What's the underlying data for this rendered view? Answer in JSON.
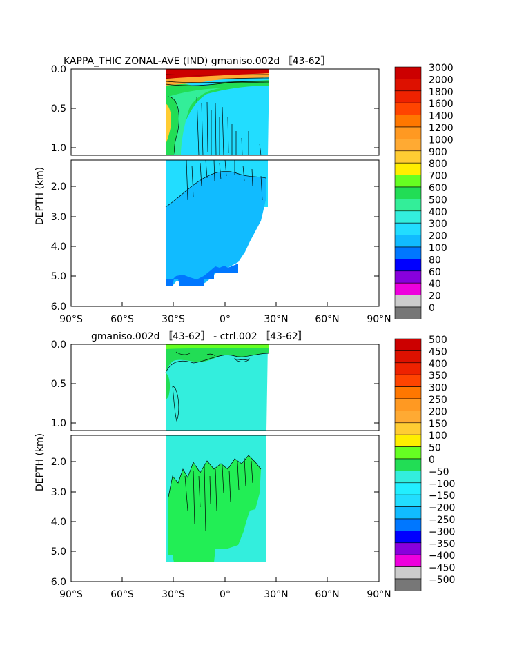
{
  "chart_data": [
    {
      "type": "heatmap",
      "title": "KAPPA_THIC ZONAL-AVE (IND) gmaniso.002d 〚43-62〛",
      "ylabel": "DEPTH (km)",
      "x_ticks": [
        "90°S",
        "60°S",
        "30°S",
        "0°",
        "30°N",
        "60°N",
        "90°N"
      ],
      "y_ticks_upper": [
        "0.0",
        "0.5",
        "1.0"
      ],
      "y_ticks_lower": [
        "2.0",
        "3.0",
        "4.0",
        "5.0",
        "6.0"
      ],
      "xlim": [
        -90,
        90
      ],
      "ylim": [
        0,
        6.0
      ],
      "upper_panel_ylim": [
        0,
        1.1
      ],
      "lower_panel_ylim": [
        1.1,
        6.0
      ],
      "legend": "right",
      "colorbar_levels": [
        "3000",
        "2000",
        "1800",
        "1600",
        "1400",
        "1200",
        "1000",
        "900",
        "800",
        "700",
        "600",
        "500",
        "400",
        "300",
        "200",
        "100",
        "80",
        "60",
        "40",
        "20",
        "0"
      ],
      "colorbar_colors": [
        "#cc0000",
        "#dd1100",
        "#ee2200",
        "#ff4400",
        "#ff7700",
        "#ff9922",
        "#ffaa33",
        "#ffcc33",
        "#ffee00",
        "#66ff22",
        "#22dd55",
        "#33ee99",
        "#33eedd",
        "#22ddff",
        "#11bbff",
        "#0077ff",
        "#0000ff",
        "#8800dd",
        "#ee00dd",
        "#cccccc",
        "#777777"
      ],
      "data_extent": {
        "lat": [
          -35,
          26
        ],
        "max_depth_km": 5.35
      }
    },
    {
      "type": "heatmap",
      "title": "gmaniso.002d 〚43-62〛 - ctrl.002 〚43-62〛",
      "ylabel": "DEPTH (km)",
      "x_ticks": [
        "90°S",
        "60°S",
        "30°S",
        "0°",
        "30°N",
        "60°N",
        "90°N"
      ],
      "y_ticks_upper": [
        "0.0",
        "0.5",
        "1.0"
      ],
      "y_ticks_lower": [
        "2.0",
        "3.0",
        "4.0",
        "5.0",
        "6.0"
      ],
      "xlim": [
        -90,
        90
      ],
      "ylim": [
        0,
        6.0
      ],
      "upper_panel_ylim": [
        0,
        1.1
      ],
      "lower_panel_ylim": [
        1.1,
        6.0
      ],
      "legend": "right",
      "colorbar_levels": [
        "500",
        "450",
        "400",
        "350",
        "300",
        "250",
        "200",
        "150",
        "100",
        "50",
        "0",
        "−50",
        "−100",
        "−150",
        "−200",
        "−250",
        "−300",
        "−350",
        "−400",
        "−450",
        "−500"
      ],
      "colorbar_colors": [
        "#cc0000",
        "#dd1100",
        "#ee2200",
        "#ff4400",
        "#ff7700",
        "#ff9922",
        "#ffaa33",
        "#ffcc33",
        "#ffee00",
        "#66ff22",
        "#22dd55",
        "#33eedd",
        "#22eeff",
        "#22ddff",
        "#11bbff",
        "#0077ff",
        "#0000ff",
        "#8800dd",
        "#ee00dd",
        "#cccccc",
        "#777777"
      ],
      "data_extent": {
        "lat": [
          -35,
          26
        ],
        "max_depth_km": 5.35
      }
    }
  ]
}
